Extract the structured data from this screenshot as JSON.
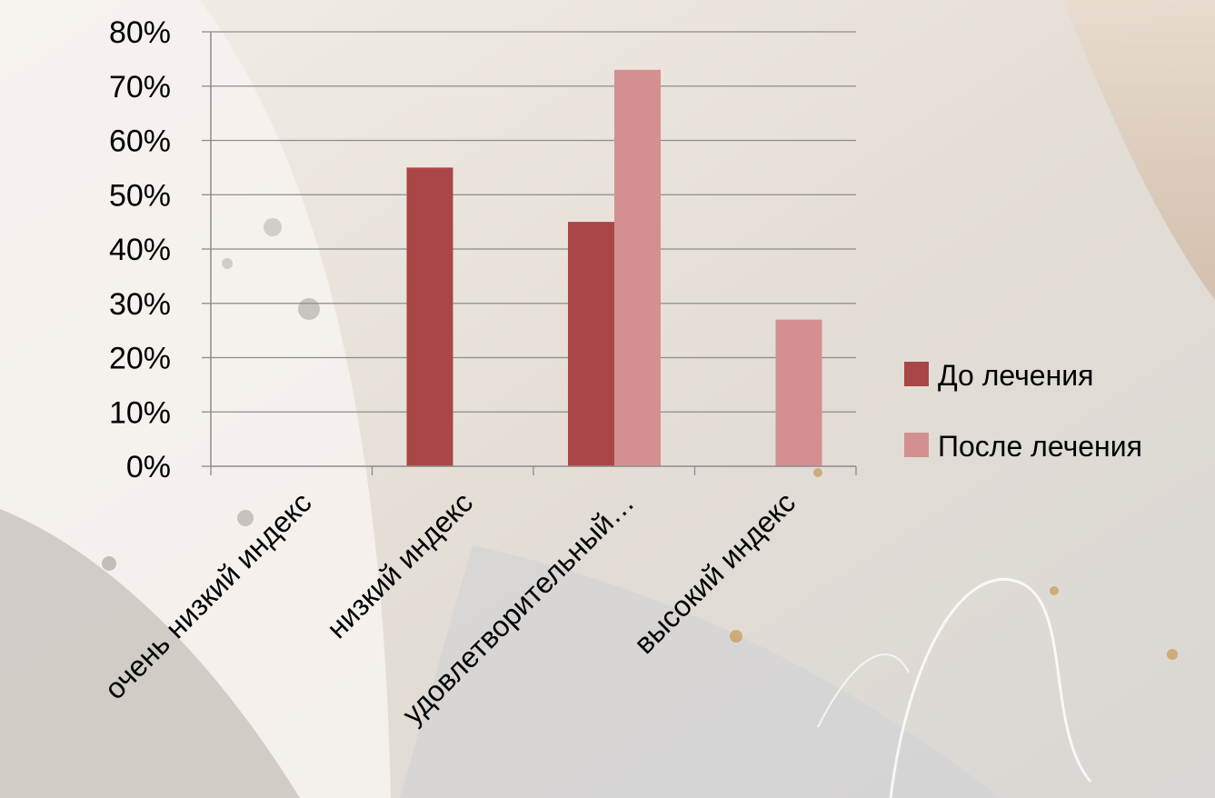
{
  "chart_data": {
    "type": "bar",
    "categories": [
      "очень низкий индекс",
      "низкий индекс",
      "удовлетворительный…",
      "высокий индекс"
    ],
    "series": [
      {
        "name": "До лечения",
        "values": [
          0,
          55,
          45,
          0
        ],
        "color": "#ab4646"
      },
      {
        "name": "После лечения",
        "values": [
          0,
          0,
          73,
          27
        ],
        "color": "#d49090"
      }
    ],
    "yticks": [
      "0%",
      "10%",
      "20%",
      "30%",
      "40%",
      "50%",
      "60%",
      "70%",
      "80%"
    ],
    "ylim": [
      0,
      80
    ],
    "grid": true,
    "legend_position": "right"
  }
}
